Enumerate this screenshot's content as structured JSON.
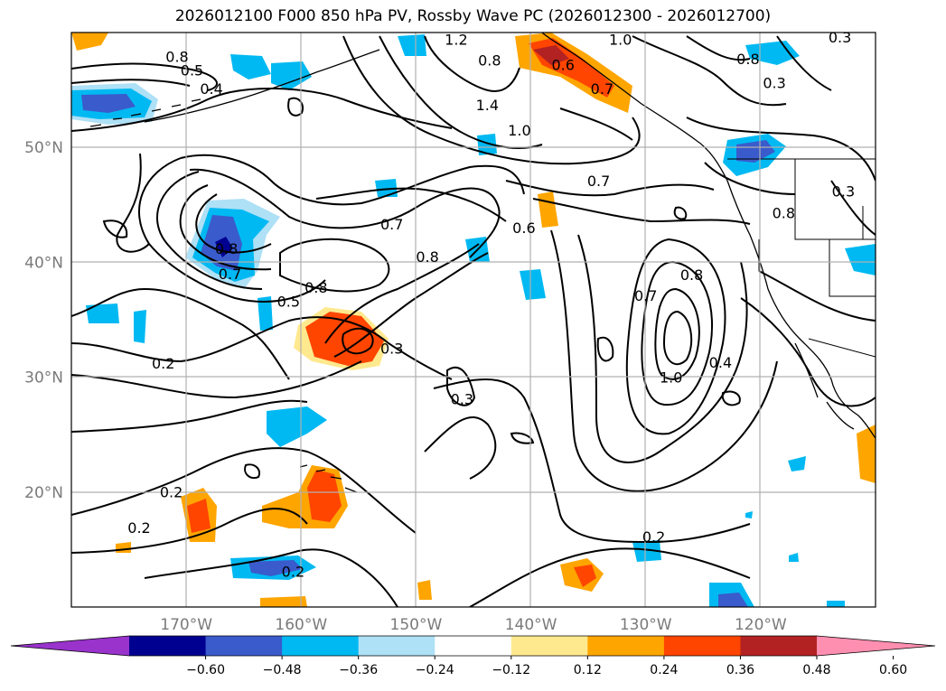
{
  "title": "2026012100 F000 850 hPa PV, Rossby Wave PC (2026012300 - 2026012700)",
  "chart_data": {
    "type": "contour_map",
    "field_lines": "850 hPa PV",
    "field_shaded": "Rossby Wave PC",
    "lon_range": [
      -180,
      -110
    ],
    "lat_range": [
      10,
      60
    ],
    "grid": true,
    "lat_ticks": [
      {
        "value": 20,
        "label": "20°N"
      },
      {
        "value": 30,
        "label": "30°N"
      },
      {
        "value": 40,
        "label": "40°N"
      },
      {
        "value": 50,
        "label": "50°N"
      }
    ],
    "lon_ticks": [
      {
        "value": -170,
        "label": "170°W"
      },
      {
        "value": -160,
        "label": "160°W"
      },
      {
        "value": -150,
        "label": "150°W"
      },
      {
        "value": -140,
        "label": "140°W"
      },
      {
        "value": -130,
        "label": "130°W"
      },
      {
        "value": -120,
        "label": "120°W"
      }
    ],
    "colorbar": {
      "levels": [
        "−0.60",
        "−0.48",
        "−0.36",
        "−0.24",
        "−0.12",
        "0.12",
        "0.24",
        "0.36",
        "0.48",
        "0.60"
      ],
      "colors": [
        "#9933cc",
        "#000090",
        "#3a5bcc",
        "#00b9f2",
        "#aee0f6",
        "#ffffff",
        "#ffe98f",
        "#ffa500",
        "#ff4500",
        "#b22222",
        "#ff8fb0"
      ],
      "extend": "both"
    },
    "contour_labels": [
      {
        "lon": -170.8,
        "lat": 57.8,
        "text": "0.8"
      },
      {
        "lon": -169.5,
        "lat": 56.6,
        "text": "0.5"
      },
      {
        "lon": -167.8,
        "lat": 55.0,
        "text": "0.4"
      },
      {
        "lon": -146.5,
        "lat": 59.3,
        "text": "1.2"
      },
      {
        "lon": -143.6,
        "lat": 57.5,
        "text": "0.8"
      },
      {
        "lon": -143.8,
        "lat": 53.6,
        "text": "1.4"
      },
      {
        "lon": -141.0,
        "lat": 51.4,
        "text": "1.0"
      },
      {
        "lon": -137.2,
        "lat": 57.1,
        "text": "0.6"
      },
      {
        "lon": -133.8,
        "lat": 55.0,
        "text": "0.7"
      },
      {
        "lon": -132.2,
        "lat": 59.3,
        "text": "1.0"
      },
      {
        "lon": -121.1,
        "lat": 57.6,
        "text": "0.8"
      },
      {
        "lon": -118.8,
        "lat": 55.5,
        "text": "0.3"
      },
      {
        "lon": -113.1,
        "lat": 59.5,
        "text": "0.3"
      },
      {
        "lon": -134.1,
        "lat": 47.0,
        "text": "0.7"
      },
      {
        "lon": -118.0,
        "lat": 44.2,
        "text": "0.8"
      },
      {
        "lon": -112.8,
        "lat": 46.1,
        "text": "0.3"
      },
      {
        "lon": -152.1,
        "lat": 43.2,
        "text": "0.7"
      },
      {
        "lon": -140.6,
        "lat": 42.9,
        "text": "0.6"
      },
      {
        "lon": -149.0,
        "lat": 40.4,
        "text": "0.8"
      },
      {
        "lon": -158.7,
        "lat": 37.7,
        "text": "0.8"
      },
      {
        "lon": -166.5,
        "lat": 41.1,
        "text": "0.8"
      },
      {
        "lon": -166.2,
        "lat": 38.9,
        "text": "0.7"
      },
      {
        "lon": -161.1,
        "lat": 36.5,
        "text": "0.5"
      },
      {
        "lon": -152.1,
        "lat": 32.4,
        "text": "0.3"
      },
      {
        "lon": -130.0,
        "lat": 37.0,
        "text": "0.7"
      },
      {
        "lon": -126.0,
        "lat": 38.8,
        "text": "0.8"
      },
      {
        "lon": -127.8,
        "lat": 29.9,
        "text": "1.0"
      },
      {
        "lon": -123.5,
        "lat": 31.2,
        "text": "0.4"
      },
      {
        "lon": -172.0,
        "lat": 31.1,
        "text": "0.2"
      },
      {
        "lon": -146.0,
        "lat": 28.0,
        "text": "0.3"
      },
      {
        "lon": -171.3,
        "lat": 19.9,
        "text": "0.2"
      },
      {
        "lon": -174.1,
        "lat": 16.8,
        "text": "0.2"
      },
      {
        "lon": -160.7,
        "lat": 13.0,
        "text": "0.2"
      },
      {
        "lon": -129.3,
        "lat": 16.0,
        "text": "0.2"
      }
    ]
  }
}
